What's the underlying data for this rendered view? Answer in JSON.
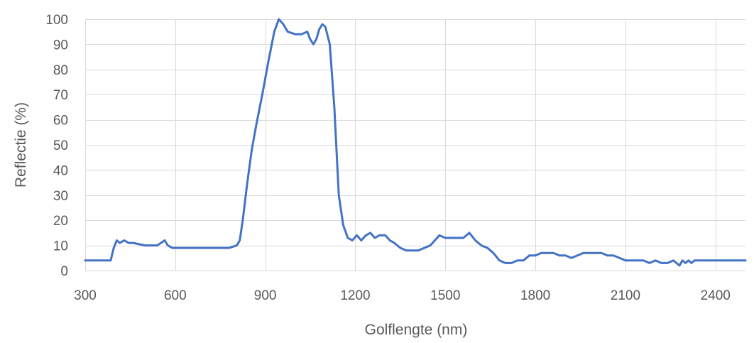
{
  "chart_data": {
    "type": "line",
    "title": "",
    "xlabel": "Golflengte (nm)",
    "ylabel": "Reflectie (%)",
    "xlim": [
      300,
      2500
    ],
    "ylim": [
      0,
      100
    ],
    "x_ticks": [
      300,
      600,
      900,
      1200,
      1500,
      1800,
      2100,
      2400
    ],
    "y_ticks": [
      0,
      10,
      20,
      30,
      40,
      50,
      60,
      70,
      80,
      90,
      100
    ],
    "grid": true,
    "legend": "none",
    "series": [
      {
        "color": "#4472c4",
        "x": [
          300,
          385,
          395,
          405,
          415,
          430,
          445,
          460,
          500,
          540,
          565,
          575,
          590,
          620,
          660,
          700,
          740,
          780,
          805,
          815,
          825,
          840,
          855,
          870,
          890,
          910,
          930,
          945,
          960,
          975,
          1000,
          1020,
          1040,
          1050,
          1060,
          1070,
          1080,
          1090,
          1100,
          1115,
          1130,
          1145,
          1160,
          1175,
          1190,
          1205,
          1220,
          1235,
          1250,
          1265,
          1280,
          1300,
          1315,
          1330,
          1350,
          1370,
          1390,
          1410,
          1430,
          1450,
          1465,
          1480,
          1500,
          1520,
          1540,
          1560,
          1580,
          1600,
          1620,
          1640,
          1650,
          1660,
          1680,
          1700,
          1720,
          1740,
          1760,
          1780,
          1800,
          1820,
          1840,
          1860,
          1880,
          1900,
          1920,
          1940,
          1960,
          1980,
          2000,
          2020,
          2040,
          2060,
          2080,
          2100,
          2120,
          2140,
          2160,
          2180,
          2200,
          2220,
          2240,
          2260,
          2270,
          2280,
          2290,
          2300,
          2310,
          2320,
          2330,
          2340,
          2350,
          2400,
          2500
        ],
        "y": [
          4,
          4,
          9,
          12,
          11,
          12,
          11,
          11,
          10,
          10,
          12,
          10,
          9,
          9,
          9,
          9,
          9,
          9,
          10,
          12,
          20,
          35,
          48,
          58,
          70,
          83,
          95,
          100,
          98,
          95,
          94,
          94,
          95,
          92,
          90,
          92,
          96,
          98,
          97,
          90,
          65,
          30,
          18,
          13,
          12,
          14,
          12,
          14,
          15,
          13,
          14,
          14,
          12,
          11,
          9,
          8,
          8,
          8,
          9,
          10,
          12,
          14,
          13,
          13,
          13,
          13,
          15,
          12,
          10,
          9,
          8,
          7,
          4,
          3,
          3,
          4,
          4,
          6,
          6,
          7,
          7,
          7,
          6,
          6,
          5,
          6,
          7,
          7,
          7,
          7,
          6,
          6,
          5,
          4,
          4,
          4,
          4,
          3,
          4,
          3,
          3,
          4,
          3,
          2,
          4,
          3,
          4,
          3,
          4,
          4,
          4,
          4,
          4
        ]
      }
    ]
  }
}
